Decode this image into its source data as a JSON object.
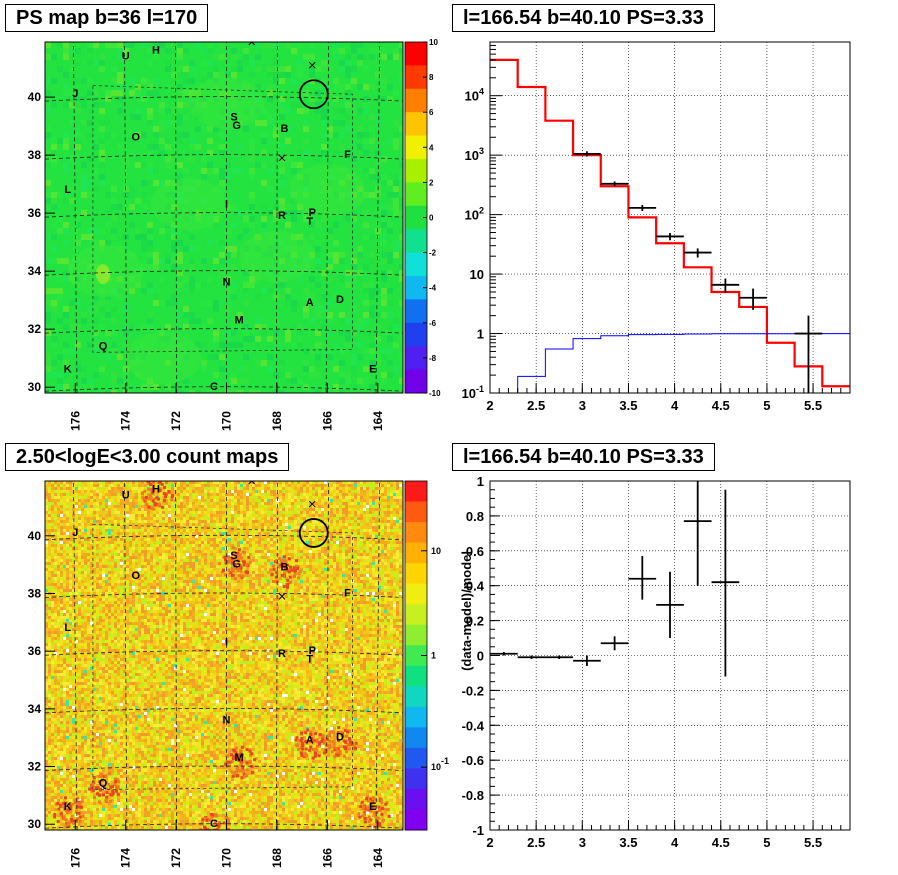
{
  "titles": {
    "top_left": "PS map b=36 l=170",
    "top_right": "l=166.54 b=40.10 PS=3.33",
    "bottom_left": "2.50<logE<3.00 count maps",
    "bottom_right": "l=166.54 b=40.10 PS=3.33"
  },
  "chart_data": [
    {
      "type": "heatmap",
      "title": "PS map b=36 l=170",
      "x_ticks": [
        "176",
        "174",
        "172",
        "170",
        "168",
        "166",
        "164"
      ],
      "y_ticks": [
        "30",
        "32",
        "34",
        "36",
        "38",
        "40"
      ],
      "xlim": [
        177.2,
        163.0
      ],
      "ylim": [
        29.8,
        41.9
      ],
      "colorbar": {
        "ticks": [
          "10",
          "8",
          "6",
          "4",
          "2",
          "0",
          "-2",
          "-4",
          "-6",
          "-8",
          "-10"
        ],
        "range": [
          -10,
          10
        ],
        "scale": "linear"
      },
      "colors": {
        "background": "#22e340"
      },
      "sources": [
        {
          "label": "U",
          "l": 174.0,
          "b": 41.3
        },
        {
          "label": "H",
          "l": 172.8,
          "b": 41.5
        },
        {
          "label": "J",
          "l": 176.0,
          "b": 40.0
        },
        {
          "label": "S",
          "l": 169.7,
          "b": 39.2
        },
        {
          "label": "G",
          "l": 169.6,
          "b": 38.9
        },
        {
          "label": "B",
          "l": 167.7,
          "b": 38.8
        },
        {
          "label": "O",
          "l": 173.6,
          "b": 38.5
        },
        {
          "label": "F",
          "l": 165.2,
          "b": 37.9
        },
        {
          "label": "L",
          "l": 176.3,
          "b": 36.7
        },
        {
          "label": "I",
          "l": 170.0,
          "b": 36.2
        },
        {
          "label": "R",
          "l": 167.8,
          "b": 35.8
        },
        {
          "label": "P",
          "l": 166.6,
          "b": 35.9
        },
        {
          "label": "T",
          "l": 166.7,
          "b": 35.6
        },
        {
          "label": "N",
          "l": 170.0,
          "b": 33.5
        },
        {
          "label": "A",
          "l": 166.7,
          "b": 32.8
        },
        {
          "label": "D",
          "l": 165.5,
          "b": 32.9
        },
        {
          "label": "M",
          "l": 169.5,
          "b": 32.2
        },
        {
          "label": "Q",
          "l": 174.9,
          "b": 31.3
        },
        {
          "label": "K",
          "l": 176.3,
          "b": 30.5
        },
        {
          "label": "E",
          "l": 164.2,
          "b": 30.5
        },
        {
          "label": "C",
          "l": 170.5,
          "b": 29.9
        }
      ],
      "markers": [
        {
          "l": 169.0,
          "b": 41.9
        },
        {
          "l": 166.6,
          "b": 41.1
        },
        {
          "l": 167.8,
          "b": 37.9
        }
      ],
      "circle": {
        "l": 166.54,
        "b": 40.1
      }
    },
    {
      "type": "line",
      "title": "l=166.54 b=40.10 PS=3.33",
      "x_ticks": [
        "2",
        "2.5",
        "3",
        "3.5",
        "4",
        "4.5",
        "5",
        "5.5"
      ],
      "y_ticks": [
        "10^-1",
        "1",
        "10",
        "10^2",
        "10^3",
        "10^4"
      ],
      "xlim": [
        2,
        5.9
      ],
      "ylim": [
        0.1,
        80000
      ],
      "yscale": "log",
      "grid": true,
      "bin_edges": [
        2.0,
        2.3,
        2.6,
        2.9,
        3.2,
        3.5,
        3.8,
        4.1,
        4.4,
        4.7,
        5.0,
        5.3,
        5.6,
        5.9
      ],
      "series": [
        {
          "style": "step",
          "color": "#ff0000",
          "values": [
            40000,
            14000,
            3800,
            1000,
            300,
            90,
            33,
            13,
            5,
            2.8,
            0.7,
            0.28,
            0.13
          ]
        },
        {
          "style": "step",
          "color": "#0000ff",
          "values": [
            0.1,
            0.19,
            0.55,
            0.82,
            0.92,
            0.96,
            0.97,
            0.98,
            0.99,
            0.99,
            0.99,
            0.995,
            0.995
          ]
        },
        {
          "style": "points",
          "color": "#000000",
          "x": [
            3.05,
            3.35,
            3.65,
            3.95,
            4.25,
            4.55,
            4.85,
            5.45
          ],
          "y": [
            1050,
            330,
            130,
            43,
            23,
            6.6,
            4,
            1
          ],
          "y_low": [
            950,
            300,
            115,
            37,
            19,
            4.8,
            2.5,
            0.1
          ],
          "y_high": [
            1160,
            360,
            145,
            49,
            27,
            8.4,
            5.7,
            2
          ],
          "x_err": 0.15
        }
      ]
    },
    {
      "type": "heatmap",
      "title": "2.50<logE<3.00 count maps",
      "x_ticks": [
        "176",
        "174",
        "172",
        "170",
        "168",
        "166",
        "164"
      ],
      "y_ticks": [
        "30",
        "32",
        "34",
        "36",
        "38",
        "40"
      ],
      "xlim": [
        177.2,
        163.0
      ],
      "ylim": [
        29.8,
        41.9
      ],
      "colorbar": {
        "ticks": [
          "10",
          "1",
          "10^-1"
        ],
        "scale": "log"
      },
      "colors": {
        "background": "#f2e01a"
      },
      "hotspots": [
        {
          "label": "S",
          "l": 169.7,
          "b": 39.1
        },
        {
          "label": "B",
          "l": 167.7,
          "b": 38.8
        },
        {
          "label": "A",
          "l": 166.7,
          "b": 32.8
        },
        {
          "label": "D",
          "l": 165.5,
          "b": 32.9
        },
        {
          "label": "E",
          "l": 164.2,
          "b": 30.5
        },
        {
          "label": "M",
          "l": 169.5,
          "b": 32.2
        },
        {
          "label": "H",
          "l": 172.8,
          "b": 41.5
        },
        {
          "label": "C",
          "l": 170.5,
          "b": 29.9
        },
        {
          "label": "K",
          "l": 176.3,
          "b": 30.5
        },
        {
          "label": "Q",
          "l": 174.9,
          "b": 31.3
        }
      ]
    },
    {
      "type": "scatter",
      "title": "l=166.54 b=40.10 PS=3.33",
      "ylabel": "(data-model)/model",
      "x_ticks": [
        "2",
        "2.5",
        "3",
        "3.5",
        "4",
        "4.5",
        "5",
        "5.5"
      ],
      "y_ticks": [
        "1",
        "0.8",
        "0.6",
        "0.4",
        "0.2",
        "0",
        "-0.2",
        "-0.4",
        "-0.6",
        "-0.8",
        "-1"
      ],
      "xlim": [
        2,
        5.9
      ],
      "ylim": [
        -1,
        1
      ],
      "grid": true,
      "points": {
        "x": [
          2.15,
          2.45,
          2.75,
          3.05,
          3.35,
          3.65,
          3.95,
          4.25,
          4.55
        ],
        "y": [
          0.01,
          -0.01,
          -0.01,
          -0.03,
          0.07,
          0.44,
          0.29,
          0.77,
          0.42
        ],
        "y_low": [
          0.0,
          -0.02,
          -0.02,
          -0.06,
          0.03,
          0.32,
          0.1,
          0.4,
          -0.12
        ],
        "y_high": [
          0.02,
          0.0,
          0.0,
          0.0,
          0.11,
          0.57,
          0.48,
          1.0,
          0.95
        ],
        "x_err": 0.15
      }
    }
  ]
}
